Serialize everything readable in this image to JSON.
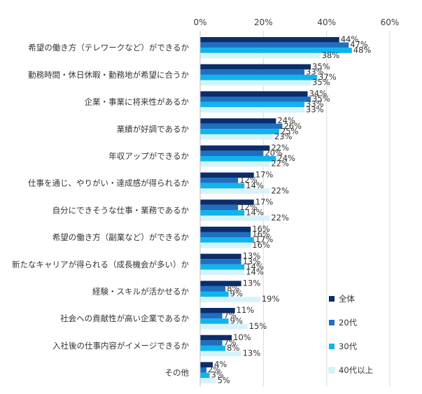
{
  "chart_data": {
    "type": "bar",
    "orientation": "horizontal",
    "title": "",
    "xlabel": "",
    "ylabel": "",
    "xlim": [
      0,
      60
    ],
    "x_ticks": [
      "0%",
      "20%",
      "40%",
      "60%"
    ],
    "x_tick_values": [
      0,
      20,
      40,
      60
    ],
    "value_suffix": "%",
    "grid": true,
    "legend_position": "right-bottom",
    "categories": [
      "希望の働き方（テレワークなど）ができるか",
      "勤務時間・休日休暇・勤務地が希望に合うか",
      "企業・事業に将来性があるか",
      "業績が好調であるか",
      "年収アップができるか",
      "仕事を通じ、やりがい・達成感が得られるか",
      "自分にできそうな仕事・業務であるか",
      "希望の働き方（副業など）ができるか",
      "新たなキャリアが得られる（成長機会が多い）か",
      "経験・スキルが活かせるか",
      "社会への貢献性が高い企業であるか",
      "入社後の仕事内容がイメージできるか",
      "その他"
    ],
    "series": [
      {
        "name": "全体",
        "color": "#0b2d6b",
        "values": [
          44,
          35,
          34,
          24,
          22,
          17,
          17,
          16,
          13,
          13,
          11,
          10,
          4
        ]
      },
      {
        "name": "20代",
        "color": "#1f6fc0",
        "values": [
          47,
          33,
          35,
          26,
          20,
          12,
          12,
          16,
          13,
          8,
          7,
          7,
          2
        ]
      },
      {
        "name": "30代",
        "color": "#10b4ee",
        "values": [
          48,
          37,
          33,
          25,
          24,
          14,
          14,
          17,
          14,
          9,
          9,
          8,
          3
        ]
      },
      {
        "name": "40代以上",
        "color": "#d6f3fb",
        "values": [
          38,
          35,
          33,
          23,
          22,
          22,
          22,
          16,
          14,
          19,
          15,
          13,
          5
        ]
      }
    ]
  }
}
